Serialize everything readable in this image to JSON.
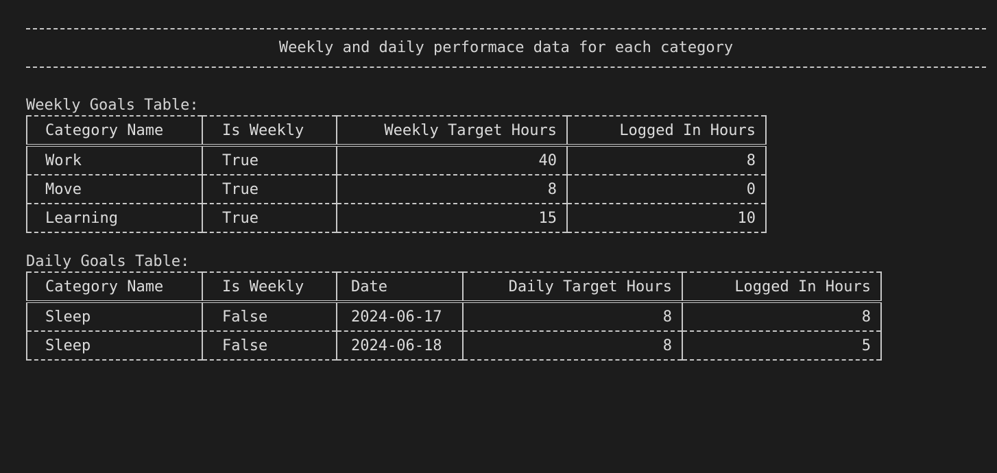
{
  "banner": {
    "title": "Weekly and daily performace data for each category"
  },
  "weekly": {
    "title": "Weekly Goals Table:",
    "headers": [
      "Category Name",
      "Is Weekly",
      "Weekly Target Hours",
      "Logged In Hours"
    ],
    "rows": [
      [
        "Work",
        "True",
        "40",
        "8"
      ],
      [
        "Move",
        "True",
        "8",
        "0"
      ],
      [
        "Learning",
        "True",
        "15",
        "10"
      ]
    ]
  },
  "daily": {
    "title": "Daily Goals Table:",
    "headers": [
      "Category Name",
      "Is Weekly",
      "Date",
      "Daily Target Hours",
      "Logged In Hours"
    ],
    "rows": [
      [
        "Sleep",
        "False",
        "2024-06-17",
        "8",
        "8"
      ],
      [
        "Sleep",
        "False",
        "2024-06-18",
        "8",
        "5"
      ]
    ]
  }
}
